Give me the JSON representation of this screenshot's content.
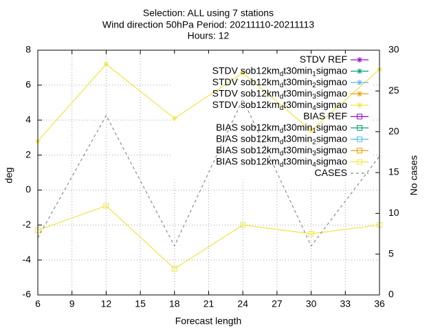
{
  "chart_data": {
    "type": "line",
    "title": [
      "Selection: ALL using     7 stations",
      "Wind direction 50hPa   Period: 20211110-20211113",
      "Hours: 12"
    ],
    "xlabel": "Forecast length",
    "ylabel": "deg",
    "y2label": "No cases",
    "x": [
      6,
      12,
      18,
      24,
      30,
      36
    ],
    "xlim": [
      6,
      36
    ],
    "xticks": [
      6,
      9,
      12,
      15,
      18,
      21,
      24,
      27,
      30,
      33,
      36
    ],
    "ylim": [
      -6,
      8
    ],
    "yticks": [
      -6,
      -4,
      -2,
      0,
      2,
      4,
      6,
      8
    ],
    "y2lim": [
      0,
      30
    ],
    "y2ticks": [
      0,
      5,
      10,
      15,
      20,
      25,
      30
    ],
    "grid": true,
    "series": [
      {
        "name": "STDV REF",
        "color": "#9400d3",
        "marker": "star",
        "values": [
          null,
          null,
          null,
          null,
          null,
          null
        ]
      },
      {
        "name": "STDV sob12km_dt30min_1sigmao",
        "color": "#009e73",
        "marker": "star",
        "values": [
          null,
          null,
          null,
          null,
          null,
          null
        ]
      },
      {
        "name": "STDV sob12km_dt30min_2sigmao",
        "color": "#56b4e9",
        "marker": "star",
        "values": [
          null,
          null,
          null,
          null,
          null,
          null
        ]
      },
      {
        "name": "STDV sob12km_dt30min_3sigmao",
        "color": "#e69f00",
        "marker": "star",
        "values": [
          null,
          null,
          null,
          null,
          null,
          null
        ]
      },
      {
        "name": "STDV sob12km_dt30min_4sigmao",
        "color": "#f0e442",
        "marker": "star",
        "values": [
          2.8,
          7.2,
          4.1,
          6.7,
          3.4,
          6.9
        ]
      },
      {
        "name": "BIAS REF",
        "color": "#9400d3",
        "marker": "square",
        "values": [
          null,
          null,
          null,
          null,
          null,
          null
        ]
      },
      {
        "name": "BIAS sob12km_dt30min_1sigmao",
        "color": "#009e73",
        "marker": "square",
        "values": [
          null,
          null,
          null,
          null,
          null,
          null
        ]
      },
      {
        "name": "BIAS sob12km_dt30min_2sigmao",
        "color": "#56b4e9",
        "marker": "square",
        "values": [
          null,
          null,
          null,
          null,
          null,
          null
        ]
      },
      {
        "name": "BIAS sob12km_dt30min_3sigmao",
        "color": "#e69f00",
        "marker": "square",
        "values": [
          null,
          null,
          null,
          null,
          null,
          null
        ]
      },
      {
        "name": "BIAS sob12km_dt30min_4sigmao",
        "color": "#f0e442",
        "marker": "square",
        "values": [
          -2.3,
          -0.9,
          -4.5,
          -2.0,
          -2.5,
          -2.0
        ]
      },
      {
        "name": "CASES",
        "color": "#888888",
        "style": "dashed",
        "axis": "y2",
        "values": [
          7,
          22,
          6,
          24,
          6,
          17
        ]
      }
    ]
  }
}
